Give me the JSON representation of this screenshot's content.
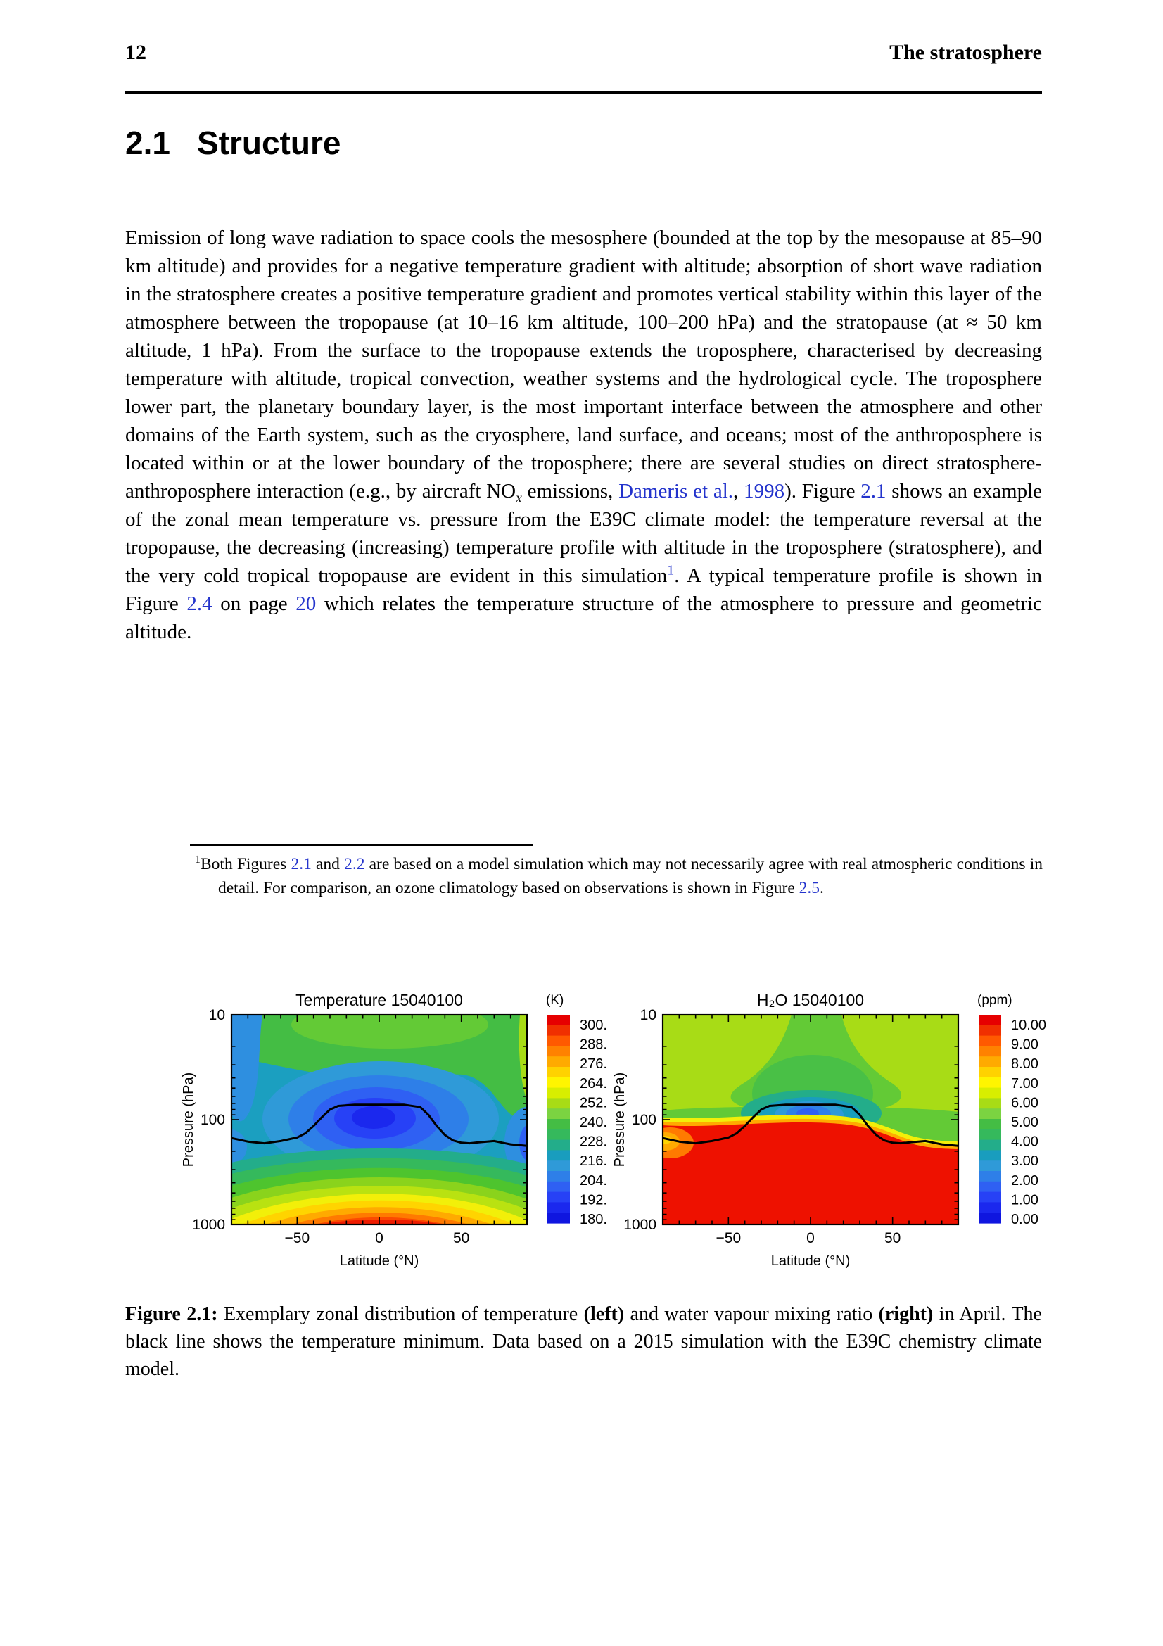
{
  "page": {
    "number": "12",
    "running_title": "The stratosphere"
  },
  "section": {
    "number": "2.1",
    "title": "Structure"
  },
  "theme": {
    "link_color": "#2333cc",
    "text_color": "#000000",
    "rule_color": "#000000"
  },
  "paragraph": {
    "segments": [
      {
        "t": "Emission of long wave radiation to space cools the mesosphere (bounded at the top by the mesopause at 85–90 km altitude) and provides for a negative temperature gradient with altitude; absorption of short wave radiation in the stratosphere creates a positive temperature gradient and promotes vertical stability within this layer of the atmosphere between the tropopause (at 10–16 km altitude, 100–200 hPa) and the stratopause (at ≈ 50 km altitude, 1 hPa). From the surface to the tropopause extends the troposphere, characterised by decreasing temperature with altitude, tropical convection, weather systems and the hydrological cycle. The troposphere lower part, the planetary boundary layer, is the most important interface between the atmosphere and other domains of the Earth system, such as the cryosphere, land surface, and oceans; most of the anthroposphere is located within or at the lower boundary of the troposphere; there are several studies on direct stratosphere-anthroposphere interaction (e.g., by aircraft NO"
      },
      {
        "t": "x",
        "sub": true,
        "italic": true
      },
      {
        "t": " emissions, "
      },
      {
        "t": "Dameris et al.",
        "link": true,
        "name": "citation-link-dameris"
      },
      {
        "t": ", "
      },
      {
        "t": "1998",
        "link": true,
        "name": "citation-year-link"
      },
      {
        "t": "). Figure "
      },
      {
        "t": "2.1",
        "link": true,
        "name": "figure-ref-2-1"
      },
      {
        "t": " shows an example of the zonal mean temperature vs. pressure from the E39C climate model: the temperature reversal at the tropopause, the decreasing (increasing) temperature profile with altitude in the troposphere (stratosphere), and the very cold tropical tropopause are evident in this simulation"
      },
      {
        "t": "1",
        "sup": true,
        "link": true,
        "name": "footnote-marker-link"
      },
      {
        "t": ". A typical temperature profile is shown in Figure "
      },
      {
        "t": "2.4",
        "link": true,
        "name": "figure-ref-2-4"
      },
      {
        "t": " on page "
      },
      {
        "t": "20",
        "link": true,
        "name": "page-ref-20"
      },
      {
        "t": " which relates the temperature structure of the atmosphere to pressure and geometric altitude."
      }
    ]
  },
  "footnote": {
    "segments": [
      {
        "t": "1",
        "sup": true
      },
      {
        "t": "Both Figures "
      },
      {
        "t": "2.1",
        "link": true,
        "name": "figure-ref-2-1"
      },
      {
        "t": " and "
      },
      {
        "t": "2.2",
        "link": true,
        "name": "figure-ref-2-2"
      },
      {
        "t": " are based on a model simulation which may not necessarily agree with real atmospheric conditions in detail. For comparison, an ozone climatology based on observations is shown in Figure "
      },
      {
        "t": "2.5",
        "link": true,
        "name": "figure-ref-2-5"
      },
      {
        "t": "."
      }
    ]
  },
  "figure": {
    "caption_segments": [
      {
        "t": "Figure 2.1:",
        "b": true
      },
      {
        "t": " Exemplary zonal distribution of temperature "
      },
      {
        "t": "(left)",
        "b": true
      },
      {
        "t": " and water vapour mixing ratio "
      },
      {
        "t": "(right)",
        "b": true
      },
      {
        "t": " in April. The black line shows the temperature minimum. Data based on a 2015 simulation with the E39C chemistry climate model."
      }
    ],
    "palette": [
      "#e60000",
      "#f03000",
      "#ff5a00",
      "#ff8200",
      "#ffaa00",
      "#ffd200",
      "#fff500",
      "#d8ee00",
      "#a8dc16",
      "#7bd341",
      "#44bd44",
      "#35b95c",
      "#23ad8a",
      "#199dbe",
      "#2f9ad8",
      "#2e7fe8",
      "#2f60f3",
      "#2741f6",
      "#1b28ee",
      "#0f16e0"
    ]
  },
  "chart_data": [
    {
      "type": "contour",
      "title": "Temperature 15040100",
      "colorbar_title": "(K)",
      "colorbar_labels": [
        "300.",
        "288.",
        "276.",
        "264.",
        "252.",
        "240.",
        "228.",
        "216.",
        "204.",
        "192.",
        "180."
      ],
      "colorbar_range": [
        180,
        300
      ],
      "xlabel": "Latitude (°N)",
      "ylabel": "Pressure (hPa)",
      "x_range": [
        -90,
        90
      ],
      "x_major_ticks": [
        -50,
        0,
        50
      ],
      "x_tick_labels": [
        "−50",
        "0",
        "50"
      ],
      "x_minor_step": 10,
      "y_scale": "log",
      "y_major_ticks": [
        10,
        100,
        1000
      ],
      "y_tick_labels": [
        "10",
        "100",
        "1000"
      ],
      "grid": false,
      "description": "Zonal mean temperature: cold minimum (~185 K, blue) at the tropical tropopause near 90 hPa; warm maximum (~300 K, red) at the equatorial surface; green mid-stratosphere (~235 K); black line marks the temperature minimum.",
      "tropopause_line": {
        "lat": [
          -90,
          -80,
          -70,
          -60,
          -50,
          -45,
          -40,
          -35,
          -30,
          -25,
          -15,
          0,
          15,
          25,
          30,
          35,
          40,
          45,
          50,
          55,
          60,
          70,
          75,
          80,
          90
        ],
        "pressure_hPa": [
          150,
          162,
          168,
          160,
          148,
          135,
          115,
          95,
          80,
          74,
          72,
          72,
          72,
          76,
          90,
          115,
          140,
          158,
          166,
          168,
          165,
          160,
          166,
          172,
          178
        ]
      }
    },
    {
      "type": "contour",
      "title": "H₂O 15040100",
      "colorbar_title": "(ppm)",
      "colorbar_labels": [
        "10.00",
        "9.00",
        "8.00",
        "7.00",
        "6.00",
        "5.00",
        "4.00",
        "3.00",
        "2.00",
        "1.00",
        "0.00"
      ],
      "colorbar_range": [
        0,
        10
      ],
      "xlabel": "Latitude (°N)",
      "ylabel": "Pressure (hPa)",
      "x_range": [
        -90,
        90
      ],
      "x_major_ticks": [
        -50,
        0,
        50
      ],
      "x_tick_labels": [
        "−50",
        "0",
        "50"
      ],
      "x_minor_step": 10,
      "y_scale": "log",
      "y_major_ticks": [
        10,
        100,
        1000
      ],
      "y_tick_labels": [
        "10",
        "100",
        "1000"
      ],
      "grid": false,
      "description": "Water vapour mixing ratio: troposphere saturated red (≥10 ppm) below ~120 hPa; dry blue minimum (~1 ppm) at the tropical tropopause; yellow-green stratosphere (~4–5 ppm); black line marks the temperature minimum.",
      "tropopause_line": {
        "lat": [
          -90,
          -80,
          -70,
          -60,
          -50,
          -45,
          -40,
          -35,
          -30,
          -25,
          -15,
          0,
          15,
          25,
          30,
          35,
          40,
          45,
          50,
          55,
          60,
          70,
          75,
          80,
          90
        ],
        "pressure_hPa": [
          150,
          162,
          168,
          160,
          148,
          135,
          115,
          95,
          80,
          74,
          72,
          72,
          72,
          76,
          90,
          115,
          140,
          158,
          166,
          168,
          165,
          160,
          166,
          172,
          178
        ]
      }
    }
  ]
}
